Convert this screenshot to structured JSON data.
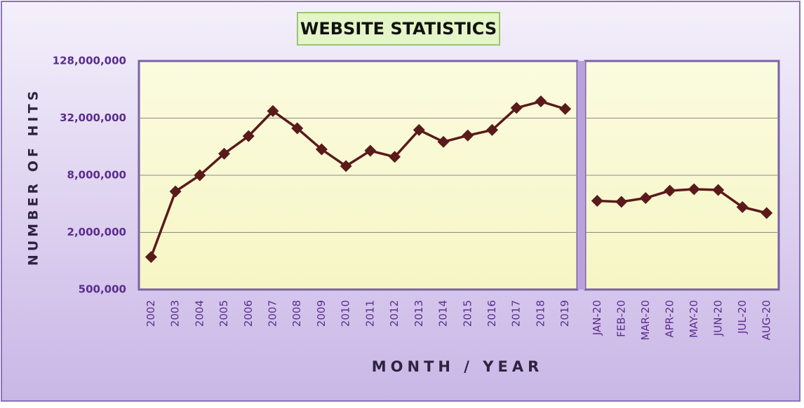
{
  "chart_data": [
    {
      "type": "line",
      "title": "WEBSITE STATISTICS",
      "y_label": "NUMBER OF HITS",
      "x_label": "MONTH / YEAR",
      "log_scale": true,
      "grid": true,
      "color": "#5a1a1a",
      "ylim": [
        500000,
        128000000
      ],
      "yticks": [
        {
          "value": 500000,
          "label": "500,000"
        },
        {
          "value": 2000000,
          "label": "2,000,000"
        },
        {
          "value": 8000000,
          "label": "8,000,000"
        },
        {
          "value": 32000000,
          "label": "32,000,000"
        },
        {
          "value": 128000000,
          "label": "128,000,000"
        }
      ],
      "categories": [
        "2002",
        "2003",
        "2004",
        "2005",
        "2006",
        "2007",
        "2008",
        "2009",
        "2010",
        "2011",
        "2012",
        "2013",
        "2014",
        "2015",
        "2016",
        "2017",
        "2018",
        "2019"
      ],
      "values": [
        1100000,
        5400000,
        8000000,
        13500000,
        20700000,
        38000000,
        25000000,
        15000000,
        10000000,
        14500000,
        12500000,
        24000000,
        18000000,
        21000000,
        24000000,
        41000000,
        48000000,
        40000000
      ]
    },
    {
      "type": "line",
      "log_scale": true,
      "color": "#5a1a1a",
      "ylim": [
        500000,
        128000000
      ],
      "categories": [
        "JAN-20",
        "FEB-20",
        "MAR-20",
        "APR-20",
        "MAY-20",
        "JUN-20",
        "JUL-20",
        "AUG-20"
      ],
      "values": [
        4300000,
        4200000,
        4600000,
        5500000,
        5700000,
        5600000,
        3700000,
        3200000
      ]
    }
  ]
}
